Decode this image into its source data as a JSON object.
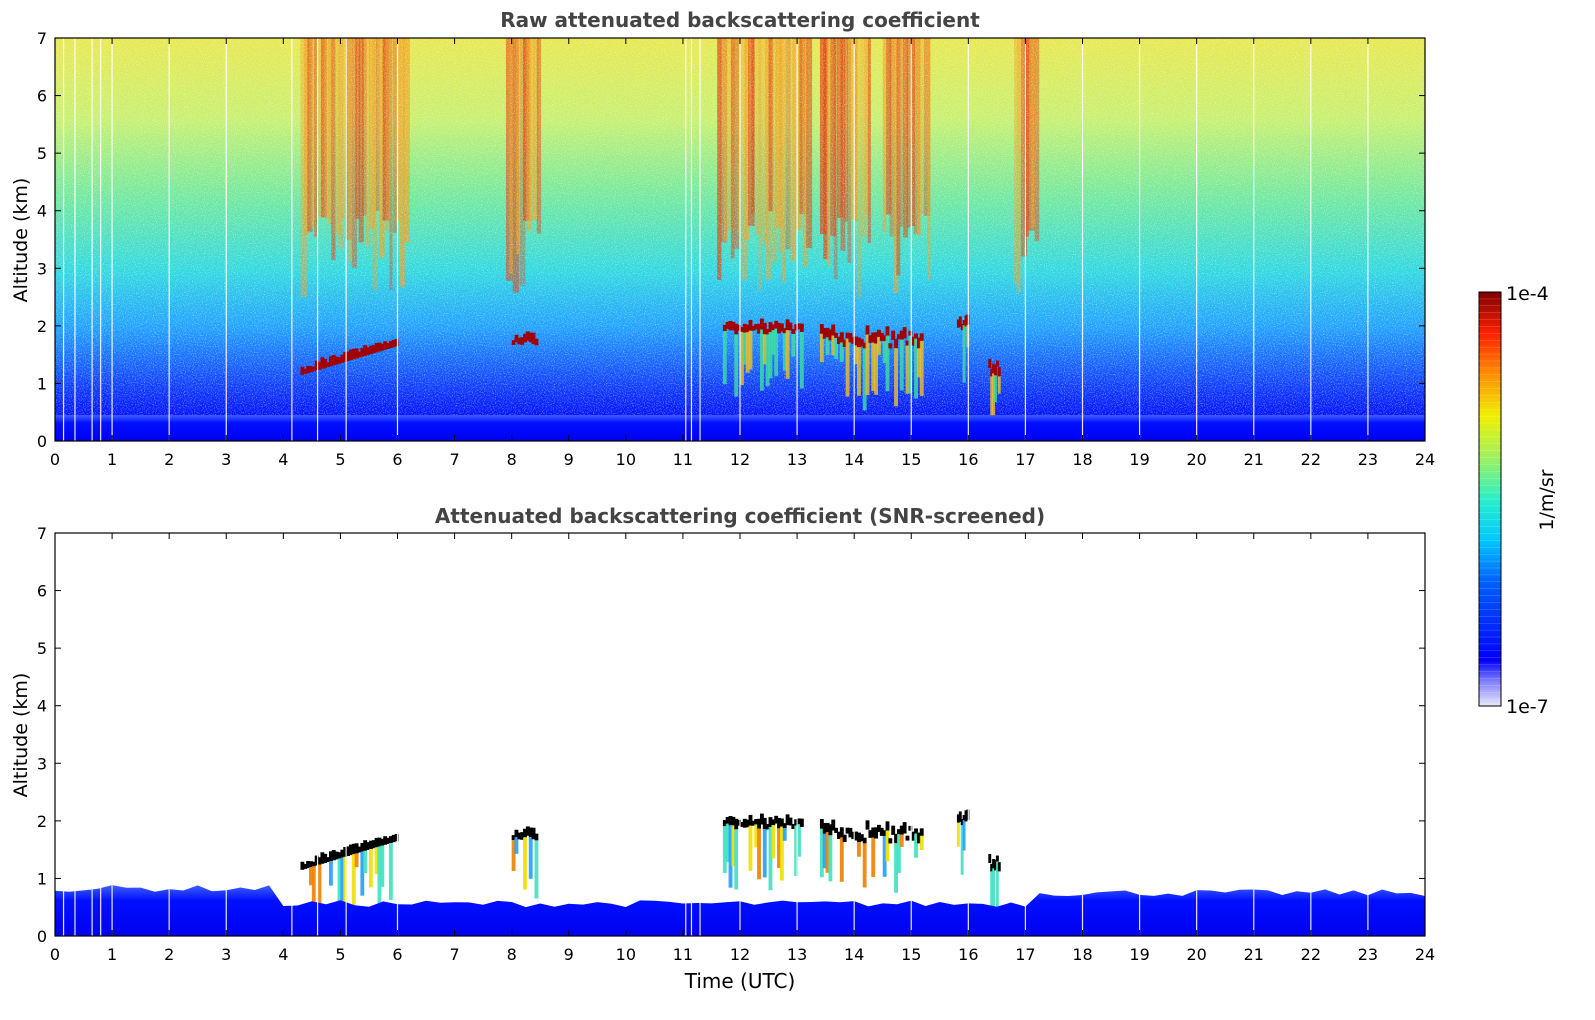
{
  "chart_data": [
    {
      "type": "heatmap",
      "title": "Raw attenuated backscattering coefficient",
      "xlabel": "",
      "ylabel": "Altitude (km)",
      "xlim": [
        0,
        24
      ],
      "ylim": [
        0,
        7
      ],
      "xticks": [
        "0",
        "1",
        "2",
        "3",
        "4",
        "5",
        "6",
        "7",
        "8",
        "9",
        "10",
        "11",
        "12",
        "13",
        "14",
        "15",
        "16",
        "17",
        "18",
        "19",
        "20",
        "21",
        "22",
        "23",
        "24"
      ],
      "yticks": [
        "0",
        "1",
        "2",
        "3",
        "4",
        "5",
        "6",
        "7"
      ],
      "cloud_layers": [
        {
          "t_start": 4.3,
          "t_end": 6.0,
          "base_km": 1.15,
          "top_km": 1.75
        },
        {
          "t_start": 8.0,
          "t_end": 8.45,
          "base_km": 1.65,
          "top_km": 2.0
        },
        {
          "t_start": 11.7,
          "t_end": 13.1,
          "base_km": 1.85,
          "top_km": 2.2
        },
        {
          "t_start": 13.4,
          "t_end": 15.2,
          "base_km": 1.6,
          "top_km": 2.5
        },
        {
          "t_start": 15.8,
          "t_end": 16.0,
          "base_km": 1.9,
          "top_km": 2.35
        },
        {
          "t_start": 16.35,
          "t_end": 16.55,
          "base_km": 1.1,
          "top_km": 1.85
        }
      ],
      "boundary_layer_top_km": 0.45
    },
    {
      "type": "heatmap",
      "title": "Attenuated backscattering coefficient (SNR-screened)",
      "xlabel": "Time (UTC)",
      "ylabel": "Altitude (km)",
      "xlim": [
        0,
        24
      ],
      "ylim": [
        0,
        7
      ],
      "xticks": [
        "0",
        "1",
        "2",
        "3",
        "4",
        "5",
        "6",
        "7",
        "8",
        "9",
        "10",
        "11",
        "12",
        "13",
        "14",
        "15",
        "16",
        "17",
        "18",
        "19",
        "20",
        "21",
        "22",
        "23",
        "24"
      ],
      "yticks": [
        "0",
        "1",
        "2",
        "3",
        "4",
        "5",
        "6",
        "7"
      ],
      "boundary_layer_top_km": 0.75
    }
  ],
  "colorbar": {
    "label": "1/m/sr",
    "max_label": "1e-4",
    "min_label": "1e-7",
    "colormap": "jet",
    "scale": "log",
    "range": [
      1e-07,
      0.0001
    ]
  }
}
